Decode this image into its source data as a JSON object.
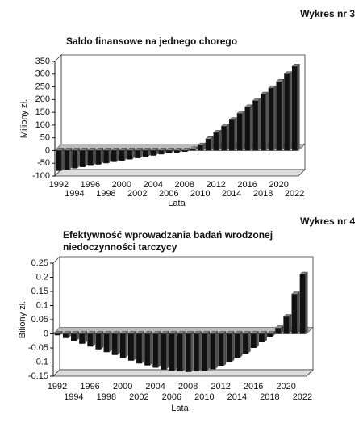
{
  "chart_data": [
    {
      "type": "bar",
      "caption": "Wykres nr 3",
      "title": "Saldo finansowe na jednego chorego",
      "ylabel": "Miliony zł.",
      "xlabel": "Lata",
      "color": "#111111",
      "categories": [
        "1992",
        null,
        "1994",
        null,
        "1996",
        null,
        "1998",
        null,
        "2000",
        null,
        "2002",
        null,
        "2004",
        null,
        "2006",
        null,
        "2008",
        null,
        "2010",
        null,
        "2012",
        null,
        "2014",
        null,
        "2016",
        null,
        "2018",
        null,
        "2020",
        null,
        "2022"
      ],
      "values": [
        -80,
        -75,
        -70,
        -65,
        -60,
        -55,
        -50,
        -45,
        -40,
        -35,
        -30,
        -25,
        -20,
        -15,
        -10,
        -8,
        -5,
        5,
        20,
        45,
        70,
        95,
        120,
        145,
        170,
        195,
        220,
        245,
        270,
        300,
        330
      ],
      "ylim": [
        -100,
        350
      ],
      "yticks": [
        -100,
        -50,
        0,
        50,
        100,
        150,
        200,
        250,
        300,
        350
      ]
    },
    {
      "type": "bar",
      "caption": "Wykres nr 4",
      "title": "Efektywność wprowadzania badań wrodzonej niedoczynności tarczycy",
      "ylabel": "Biliony zł.",
      "xlabel": "Lata",
      "color": "#111111",
      "categories": [
        "1992",
        null,
        "1994",
        null,
        "1996",
        null,
        "1998",
        null,
        "2000",
        null,
        "2002",
        null,
        "2004",
        null,
        "2006",
        null,
        "2008",
        null,
        "2010",
        null,
        "2012",
        null,
        "2014",
        null,
        "2016",
        null,
        "2018",
        null,
        "2020",
        null,
        "2022"
      ],
      "values": [
        -0.005,
        -0.015,
        -0.025,
        -0.035,
        -0.045,
        -0.055,
        -0.065,
        -0.075,
        -0.085,
        -0.095,
        -0.105,
        -0.112,
        -0.12,
        -0.126,
        -0.13,
        -0.133,
        -0.135,
        -0.133,
        -0.13,
        -0.125,
        -0.115,
        -0.1,
        -0.085,
        -0.07,
        -0.05,
        -0.03,
        -0.01,
        0.02,
        0.06,
        0.14,
        0.21
      ],
      "ylim": [
        -0.15,
        0.25
      ],
      "yticks": [
        -0.15,
        -0.1,
        -0.05,
        0,
        0.05,
        0.1,
        0.15,
        0.2,
        0.25
      ]
    }
  ]
}
